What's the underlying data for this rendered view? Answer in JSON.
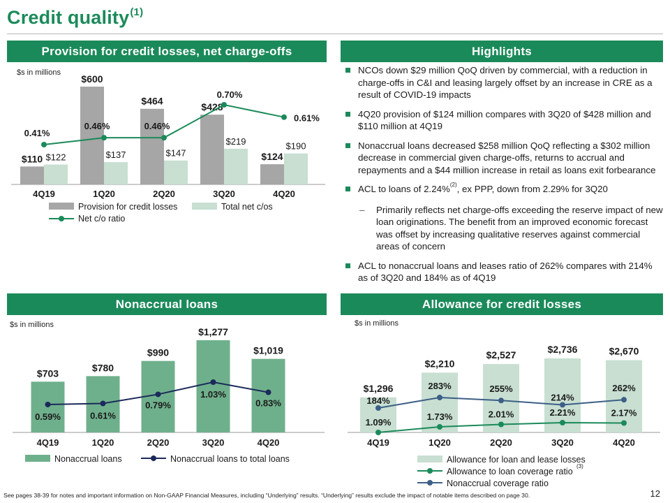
{
  "page": {
    "title": "Credit quality",
    "title_sup": "(1)",
    "footnote": "See pages 38-39 for notes and important information on Non-GAAP Financial Measures, including “Underlying” results. “Underlying” results exclude the impact of notable items described on page 30.",
    "page_number": "12"
  },
  "colors": {
    "brand_green": "#1b8a5a",
    "provision_bar": "#a6a6a6",
    "netco_bar": "#c8dfd2",
    "line_green": "#1b8a5a",
    "nonaccrual_bar": "#6fb08c",
    "navy_line": "#1b2a5a",
    "allowance_bar": "#c8dfd2",
    "coverage_line": "#3d5f86"
  },
  "panels": {
    "provision": {
      "heading": "Provision for credit losses, net charge-offs",
      "unit": "$s in millions"
    },
    "highlights": {
      "heading": "Highlights"
    },
    "nonaccrual": {
      "heading": "Nonaccrual loans",
      "unit": "$s in millions"
    },
    "allowance": {
      "heading": "Allowance for credit losses",
      "unit": "$s in millions"
    }
  },
  "highlights": {
    "b1": "NCOs down $29 million QoQ driven by commercial, with a reduction in charge-offs in C&I and leasing largely offset by an increase in CRE as a result of COVID-19 impacts",
    "b2": "4Q20 provision of $124 million compares with 3Q20 of $428 million and $110 million at 4Q19",
    "b3": "Nonaccrual loans decreased $258 million QoQ reflecting a $302 million decrease in commercial given charge-offs, returns to accrual and repayments and a $44 million increase in retail as loans exit forbearance",
    "b4a": "ACL to loans of 2.24%",
    "b4sup": "(2)",
    "b4b": ", ex PPP, down from 2.29% for 3Q20",
    "sub1": "Primarily reflects net charge-offs exceeding the reserve impact of new loan originations. The benefit from an improved economic forecast was offset by increasing qualitative reserves against commercial areas of concern",
    "b5": "ACL to nonaccrual loans and leases ratio of 262% compares with 214% as of 3Q20 and 184% as of 4Q19"
  },
  "chart_data": [
    {
      "id": "provision",
      "type": "bar",
      "categories": [
        "4Q19",
        "1Q20",
        "2Q20",
        "3Q20",
        "4Q20"
      ],
      "series": [
        {
          "name": "Provision for credit losses",
          "kind": "bar",
          "values": [
            110,
            600,
            464,
            428,
            124
          ],
          "labels": [
            "$110",
            "$600",
            "$464",
            "$428",
            "$124"
          ]
        },
        {
          "name": "Total net c/os",
          "kind": "bar",
          "values": [
            122,
            137,
            147,
            219,
            190
          ],
          "labels": [
            "$122",
            "$137",
            "$147",
            "$219",
            "$190"
          ]
        },
        {
          "name": "Net c/o ratio",
          "kind": "line",
          "values": [
            0.41,
            0.46,
            0.46,
            0.7,
            0.61
          ],
          "labels": [
            "0.41%",
            "0.46%",
            "0.46%",
            "0.70%",
            "0.61%"
          ]
        }
      ],
      "legend": "bottom",
      "grid": false
    },
    {
      "id": "nonaccrual",
      "type": "bar",
      "categories": [
        "4Q19",
        "1Q20",
        "2Q20",
        "3Q20",
        "4Q20"
      ],
      "series": [
        {
          "name": "Nonaccrual loans",
          "kind": "bar",
          "values": [
            703,
            780,
            990,
            1277,
            1019
          ],
          "labels": [
            "$703",
            "$780",
            "$990",
            "$1,277",
            "$1,019"
          ]
        },
        {
          "name": "Nonaccrual loans to total loans",
          "kind": "line",
          "values": [
            0.59,
            0.61,
            0.79,
            1.03,
            0.83
          ],
          "labels": [
            "0.59%",
            "0.61%",
            "0.79%",
            "1.03%",
            "0.83%"
          ]
        }
      ],
      "legend": "bottom",
      "grid": false
    },
    {
      "id": "allowance",
      "type": "bar",
      "categories": [
        "4Q19",
        "1Q20",
        "2Q20",
        "3Q20",
        "4Q20"
      ],
      "series": [
        {
          "name": "Allowance for loan and lease losses",
          "kind": "bar",
          "values": [
            1296,
            2210,
            2527,
            2736,
            2670
          ],
          "labels": [
            "$1,296",
            "$2,210",
            "$2,527",
            "$2,736",
            "$2,670"
          ]
        },
        {
          "name": "Allowance to loan coverage ratio",
          "name_sup": "(3)",
          "kind": "line",
          "values": [
            1.09,
            1.73,
            2.01,
            2.21,
            2.17
          ],
          "labels": [
            "1.09%",
            "1.73%",
            "2.01%",
            "2.21%",
            "2.17%"
          ]
        },
        {
          "name": "Nonaccrual coverage ratio",
          "kind": "line",
          "values": [
            184,
            283,
            255,
            214,
            262
          ],
          "labels": [
            "184%",
            "283%",
            "255%",
            "214%",
            "262%"
          ]
        }
      ],
      "legend": "bottom",
      "grid": false
    }
  ]
}
